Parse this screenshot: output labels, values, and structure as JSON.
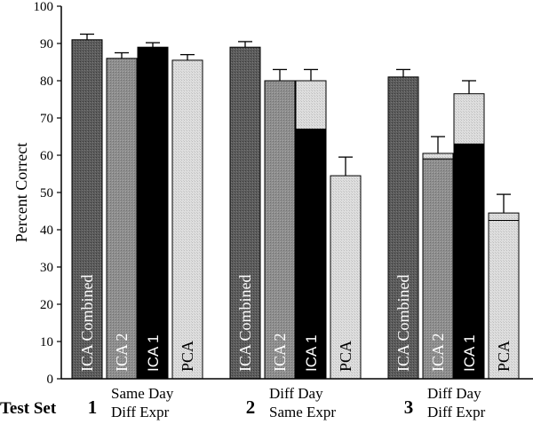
{
  "chart_data": {
    "type": "bar",
    "ylabel": "Percent Correct",
    "ylim": [
      0,
      100
    ],
    "yticks": [
      0,
      10,
      20,
      30,
      40,
      50,
      60,
      70,
      80,
      90,
      100
    ],
    "x_axis_caption": "Test Set",
    "groups": [
      {
        "number": "1",
        "line1": "Same Day",
        "line2": "Diff Expr"
      },
      {
        "number": "2",
        "line1": "Diff Day",
        "line2": "Same Expr"
      },
      {
        "number": "3",
        "line1": "Diff Day",
        "line2": "Diff Expr"
      }
    ],
    "series": [
      {
        "name": "ICA Combined",
        "values": [
          91,
          89,
          81
        ],
        "lower_values": [
          null,
          null,
          null
        ],
        "errors": [
          1.5,
          1.5,
          2.0
        ]
      },
      {
        "name": "ICA 2",
        "values": [
          86,
          80,
          60.5
        ],
        "lower_values": [
          null,
          null,
          59
        ],
        "errors": [
          1.5,
          3.0,
          4.5
        ]
      },
      {
        "name": "ICA 1",
        "values": [
          89,
          80,
          76.5
        ],
        "lower_values": [
          null,
          67,
          63
        ],
        "errors": [
          1.2,
          3.0,
          3.5
        ]
      },
      {
        "name": "PCA",
        "values": [
          85.5,
          54.5,
          44.5
        ],
        "lower_values": [
          null,
          null,
          42.5
        ],
        "errors": [
          1.5,
          5.0,
          5.0
        ]
      }
    ],
    "colors": {
      "ICA Combined": "#5c5c5c",
      "ICA 2": "#8e8e8e",
      "ICA 1": "#000000",
      "PCA": "#dcdcdc"
    },
    "grid": false
  }
}
